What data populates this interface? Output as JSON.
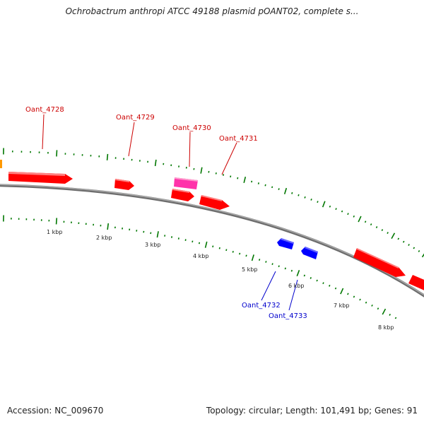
{
  "title": "Ochrobactrum anthropi ATCC 49188 plasmid pOANT02, complete s...",
  "accession": "Accession: NC_009670",
  "summary": "Topology: circular; Length: 101,491 bp; Genes: 91",
  "colors": {
    "gene_red": "#ff0000",
    "gene_pink": "#ff33aa",
    "gene_blue": "#0000ff",
    "gene_orange": "#ff9900",
    "label_red": "#cc0000",
    "label_blue": "#0000cc",
    "tick_green": "#007700",
    "backbone": "#888888"
  },
  "kbp_ticks": [
    "1 kbp",
    "2 kbp",
    "3 kbp",
    "4 kbp",
    "5 kbp",
    "6 kbp",
    "7 kbp",
    "8 kbp"
  ],
  "gene_labels": [
    {
      "name": "Oant_4728",
      "color": "red"
    },
    {
      "name": "Oant_4729",
      "color": "red"
    },
    {
      "name": "Oant_4730",
      "color": "red"
    },
    {
      "name": "Oant_4731",
      "color": "red"
    },
    {
      "name": "Oant_4732",
      "color": "blue"
    },
    {
      "name": "Oant_4733",
      "color": "blue"
    }
  ]
}
